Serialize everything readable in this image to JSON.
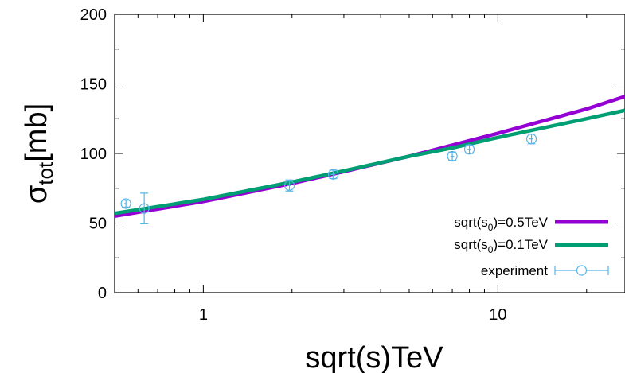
{
  "chart_data": {
    "type": "line",
    "title": "",
    "xlabel": "sqrt(s)TeV",
    "ylabel": {
      "main": "σ",
      "sub": "tot",
      "rest": "[mb]"
    },
    "xscale": "log",
    "xlim": [
      0.5,
      27
    ],
    "ylim": [
      0,
      200
    ],
    "x_ticks": [
      {
        "value": 1,
        "label": "1"
      },
      {
        "value": 10,
        "label": "10"
      }
    ],
    "y_ticks": [
      {
        "value": 0,
        "label": "0"
      },
      {
        "value": 50,
        "label": "50"
      },
      {
        "value": 100,
        "label": "100"
      },
      {
        "value": 150,
        "label": "150"
      },
      {
        "value": 200,
        "label": "200"
      }
    ],
    "grid": false,
    "legend_position": "bottom-right",
    "series": [
      {
        "name": {
          "pre": "sqrt(s",
          "sub": "0",
          "post": ")=0.5TeV"
        },
        "color": "#9400d3",
        "x": [
          0.5,
          1,
          2,
          3,
          5,
          7,
          10,
          20,
          27
        ],
        "y": [
          55,
          65.5,
          78.5,
          87,
          98,
          106,
          114.5,
          132,
          141
        ]
      },
      {
        "name": {
          "pre": "sqrt(s",
          "sub": "0",
          "post": ")=0.1TeV"
        },
        "color": "#009e73",
        "x": [
          0.5,
          1,
          2,
          3,
          5,
          7,
          10,
          20,
          27
        ],
        "y": [
          57,
          67,
          79.5,
          87.5,
          98,
          104,
          111.5,
          125,
          131
        ]
      }
    ],
    "experiment": {
      "name": "experiment",
      "color": "#56b4e9",
      "points": [
        {
          "x": 0.546,
          "y": 64,
          "yerr": 2.5,
          "xerr": 0.007
        },
        {
          "x": 0.63,
          "y": 60.5,
          "yerr": 11,
          "xerr": 0
        },
        {
          "x": 1.96,
          "y": 77,
          "yerr": 4,
          "xerr": 0.03
        },
        {
          "x": 2.76,
          "y": 85,
          "yerr": 3,
          "xerr": 0.05
        },
        {
          "x": 7,
          "y": 98,
          "yerr": 3,
          "xerr": 0.1
        },
        {
          "x": 8,
          "y": 103,
          "yerr": 3,
          "xerr": 0.12
        },
        {
          "x": 13,
          "y": 110.5,
          "yerr": 3.5,
          "xerr": 0.2
        }
      ]
    }
  }
}
